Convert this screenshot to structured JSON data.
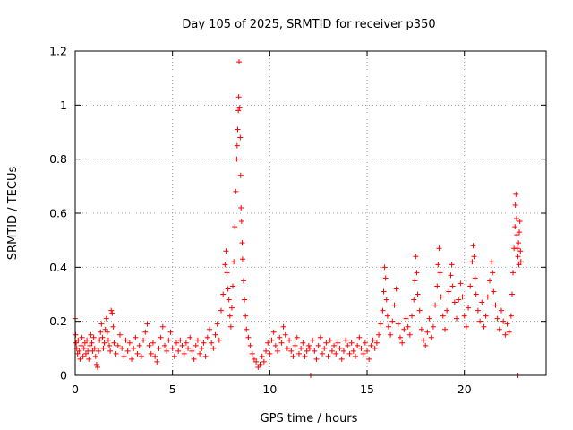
{
  "chart_data": {
    "type": "scatter",
    "title": "Day 105 of 2025, SRMTID for receiver p350",
    "xlabel": "GPS time / hours",
    "ylabel": "SRMTID / TECUs",
    "xlim": [
      0,
      24.2
    ],
    "ylim": [
      0,
      1.2
    ],
    "x_ticks": [
      0,
      5,
      10,
      15,
      20
    ],
    "x_tick_labels": [
      "0",
      "5",
      "10",
      "15",
      "20"
    ],
    "y_ticks": [
      0,
      0.2,
      0.4,
      0.6,
      0.8,
      1.0,
      1.2
    ],
    "y_tick_labels": [
      "0",
      "0.2",
      "0.4",
      "0.6",
      "0.8",
      "1",
      "1.2"
    ],
    "grid": true,
    "marker": "plus",
    "series_color": "#ff0000",
    "series": [
      {
        "name": "p350",
        "points": [
          [
            0.0,
            0.21
          ],
          [
            0.02,
            0.15
          ],
          [
            0.05,
            0.12
          ],
          [
            0.08,
            0.1
          ],
          [
            0.12,
            0.08
          ],
          [
            0.15,
            0.13
          ],
          [
            0.2,
            0.09
          ],
          [
            0.25,
            0.06
          ],
          [
            0.3,
            0.11
          ],
          [
            0.35,
            0.14
          ],
          [
            0.4,
            0.07
          ],
          [
            0.45,
            0.1
          ],
          [
            0.5,
            0.12
          ],
          [
            0.55,
            0.08
          ],
          [
            0.6,
            0.13
          ],
          [
            0.65,
            0.09
          ],
          [
            0.7,
            0.06
          ],
          [
            0.75,
            0.11
          ],
          [
            0.8,
            0.15
          ],
          [
            0.85,
            0.12
          ],
          [
            0.9,
            0.09
          ],
          [
            0.95,
            0.14
          ],
          [
            1.0,
            0.1
          ],
          [
            1.05,
            0.07
          ],
          [
            1.1,
            0.04
          ],
          [
            1.15,
            0.03
          ],
          [
            1.2,
            0.09
          ],
          [
            1.25,
            0.13
          ],
          [
            1.3,
            0.16
          ],
          [
            1.35,
            0.19
          ],
          [
            1.4,
            0.14
          ],
          [
            1.45,
            0.1
          ],
          [
            1.5,
            0.12
          ],
          [
            1.55,
            0.17
          ],
          [
            1.6,
            0.21
          ],
          [
            1.65,
            0.16
          ],
          [
            1.7,
            0.13
          ],
          [
            1.75,
            0.11
          ],
          [
            1.8,
            0.09
          ],
          [
            1.85,
            0.24
          ],
          [
            1.9,
            0.23
          ],
          [
            1.95,
            0.18
          ],
          [
            2.0,
            0.12
          ],
          [
            2.1,
            0.08
          ],
          [
            2.2,
            0.11
          ],
          [
            2.3,
            0.15
          ],
          [
            2.4,
            0.1
          ],
          [
            2.5,
            0.07
          ],
          [
            2.6,
            0.13
          ],
          [
            2.7,
            0.09
          ],
          [
            2.8,
            0.12
          ],
          [
            2.9,
            0.06
          ],
          [
            3.0,
            0.1
          ],
          [
            3.1,
            0.14
          ],
          [
            3.2,
            0.08
          ],
          [
            3.3,
            0.11
          ],
          [
            3.4,
            0.07
          ],
          [
            3.5,
            0.13
          ],
          [
            3.6,
            0.16
          ],
          [
            3.7,
            0.19
          ],
          [
            3.8,
            0.11
          ],
          [
            3.9,
            0.08
          ],
          [
            4.0,
            0.12
          ],
          [
            4.1,
            0.07
          ],
          [
            4.2,
            0.05
          ],
          [
            4.3,
            0.1
          ],
          [
            4.4,
            0.14
          ],
          [
            4.5,
            0.18
          ],
          [
            4.6,
            0.11
          ],
          [
            4.7,
            0.09
          ],
          [
            4.8,
            0.13
          ],
          [
            4.9,
            0.16
          ],
          [
            5.0,
            0.1
          ],
          [
            5.1,
            0.07
          ],
          [
            5.2,
            0.12
          ],
          [
            5.3,
            0.09
          ],
          [
            5.4,
            0.13
          ],
          [
            5.5,
            0.11
          ],
          [
            5.6,
            0.08
          ],
          [
            5.7,
            0.12
          ],
          [
            5.8,
            0.1
          ],
          [
            5.9,
            0.14
          ],
          [
            6.0,
            0.09
          ],
          [
            6.1,
            0.06
          ],
          [
            6.2,
            0.11
          ],
          [
            6.3,
            0.13
          ],
          [
            6.4,
            0.08
          ],
          [
            6.5,
            0.1
          ],
          [
            6.6,
            0.12
          ],
          [
            6.7,
            0.07
          ],
          [
            6.8,
            0.14
          ],
          [
            6.9,
            0.17
          ],
          [
            7.0,
            0.12
          ],
          [
            7.1,
            0.1
          ],
          [
            7.2,
            0.15
          ],
          [
            7.3,
            0.19
          ],
          [
            7.4,
            0.13
          ],
          [
            7.5,
            0.24
          ],
          [
            7.6,
            0.3
          ],
          [
            7.7,
            0.41
          ],
          [
            7.75,
            0.46
          ],
          [
            7.8,
            0.38
          ],
          [
            7.85,
            0.32
          ],
          [
            7.9,
            0.28
          ],
          [
            7.95,
            0.22
          ],
          [
            8.0,
            0.18
          ],
          [
            8.05,
            0.25
          ],
          [
            8.1,
            0.33
          ],
          [
            8.15,
            0.42
          ],
          [
            8.2,
            0.55
          ],
          [
            8.25,
            0.68
          ],
          [
            8.3,
            0.8
          ],
          [
            8.32,
            0.85
          ],
          [
            8.35,
            0.91
          ],
          [
            8.38,
            0.98
          ],
          [
            8.4,
            1.03
          ],
          [
            8.42,
            1.16
          ],
          [
            8.45,
            0.99
          ],
          [
            8.48,
            0.88
          ],
          [
            8.5,
            0.74
          ],
          [
            8.52,
            0.62
          ],
          [
            8.55,
            0.57
          ],
          [
            8.58,
            0.49
          ],
          [
            8.6,
            0.43
          ],
          [
            8.65,
            0.35
          ],
          [
            8.7,
            0.28
          ],
          [
            8.75,
            0.22
          ],
          [
            8.8,
            0.17
          ],
          [
            8.9,
            0.14
          ],
          [
            9.0,
            0.11
          ],
          [
            9.1,
            0.08
          ],
          [
            9.2,
            0.06
          ],
          [
            9.3,
            0.05
          ],
          [
            9.4,
            0.03
          ],
          [
            9.5,
            0.04
          ],
          [
            9.6,
            0.07
          ],
          [
            9.7,
            0.05
          ],
          [
            9.8,
            0.09
          ],
          [
            9.9,
            0.12
          ],
          [
            10.0,
            0.08
          ],
          [
            10.1,
            0.13
          ],
          [
            10.2,
            0.16
          ],
          [
            10.3,
            0.11
          ],
          [
            10.4,
            0.09
          ],
          [
            10.5,
            0.14
          ],
          [
            10.6,
            0.12
          ],
          [
            10.7,
            0.18
          ],
          [
            10.8,
            0.15
          ],
          [
            10.9,
            0.1
          ],
          [
            11.0,
            0.13
          ],
          [
            11.1,
            0.09
          ],
          [
            11.2,
            0.07
          ],
          [
            11.3,
            0.11
          ],
          [
            11.4,
            0.14
          ],
          [
            11.5,
            0.08
          ],
          [
            11.6,
            0.1
          ],
          [
            11.7,
            0.12
          ],
          [
            11.8,
            0.07
          ],
          [
            11.9,
            0.09
          ],
          [
            12.0,
            0.11
          ],
          [
            12.05,
            0.1
          ],
          [
            12.1,
            0.0
          ],
          [
            12.2,
            0.13
          ],
          [
            12.3,
            0.09
          ],
          [
            12.4,
            0.06
          ],
          [
            12.5,
            0.11
          ],
          [
            12.6,
            0.14
          ],
          [
            12.7,
            0.08
          ],
          [
            12.8,
            0.1
          ],
          [
            12.9,
            0.12
          ],
          [
            13.0,
            0.07
          ],
          [
            13.1,
            0.13
          ],
          [
            13.2,
            0.09
          ],
          [
            13.3,
            0.11
          ],
          [
            13.4,
            0.08
          ],
          [
            13.5,
            0.12
          ],
          [
            13.6,
            0.1
          ],
          [
            13.7,
            0.06
          ],
          [
            13.8,
            0.09
          ],
          [
            13.9,
            0.13
          ],
          [
            14.0,
            0.11
          ],
          [
            14.1,
            0.08
          ],
          [
            14.2,
            0.12
          ],
          [
            14.3,
            0.09
          ],
          [
            14.4,
            0.07
          ],
          [
            14.5,
            0.11
          ],
          [
            14.6,
            0.14
          ],
          [
            14.7,
            0.1
          ],
          [
            14.8,
            0.08
          ],
          [
            14.9,
            0.12
          ],
          [
            15.0,
            0.09
          ],
          [
            15.1,
            0.06
          ],
          [
            15.2,
            0.11
          ],
          [
            15.3,
            0.13
          ],
          [
            15.4,
            0.1
          ],
          [
            15.5,
            0.12
          ],
          [
            15.6,
            0.15
          ],
          [
            15.7,
            0.19
          ],
          [
            15.8,
            0.24
          ],
          [
            15.85,
            0.31
          ],
          [
            15.9,
            0.4
          ],
          [
            15.95,
            0.36
          ],
          [
            16.0,
            0.28
          ],
          [
            16.05,
            0.22
          ],
          [
            16.1,
            0.18
          ],
          [
            16.2,
            0.15
          ],
          [
            16.3,
            0.2
          ],
          [
            16.4,
            0.26
          ],
          [
            16.5,
            0.32
          ],
          [
            16.6,
            0.19
          ],
          [
            16.7,
            0.14
          ],
          [
            16.8,
            0.12
          ],
          [
            16.9,
            0.17
          ],
          [
            17.0,
            0.21
          ],
          [
            17.1,
            0.18
          ],
          [
            17.2,
            0.15
          ],
          [
            17.3,
            0.22
          ],
          [
            17.4,
            0.28
          ],
          [
            17.45,
            0.35
          ],
          [
            17.5,
            0.44
          ],
          [
            17.55,
            0.38
          ],
          [
            17.6,
            0.3
          ],
          [
            17.7,
            0.24
          ],
          [
            17.8,
            0.17
          ],
          [
            17.9,
            0.13
          ],
          [
            18.0,
            0.11
          ],
          [
            18.1,
            0.16
          ],
          [
            18.2,
            0.21
          ],
          [
            18.3,
            0.14
          ],
          [
            18.4,
            0.18
          ],
          [
            18.5,
            0.26
          ],
          [
            18.6,
            0.33
          ],
          [
            18.65,
            0.41
          ],
          [
            18.7,
            0.47
          ],
          [
            18.75,
            0.38
          ],
          [
            18.8,
            0.29
          ],
          [
            18.9,
            0.22
          ],
          [
            19.0,
            0.17
          ],
          [
            19.1,
            0.24
          ],
          [
            19.2,
            0.31
          ],
          [
            19.3,
            0.37
          ],
          [
            19.35,
            0.41
          ],
          [
            19.4,
            0.33
          ],
          [
            19.5,
            0.27
          ],
          [
            19.6,
            0.21
          ],
          [
            19.7,
            0.28
          ],
          [
            19.8,
            0.34
          ],
          [
            19.9,
            0.29
          ],
          [
            20.0,
            0.22
          ],
          [
            20.1,
            0.18
          ],
          [
            20.2,
            0.25
          ],
          [
            20.3,
            0.33
          ],
          [
            20.4,
            0.42
          ],
          [
            20.45,
            0.48
          ],
          [
            20.5,
            0.44
          ],
          [
            20.55,
            0.36
          ],
          [
            20.6,
            0.3
          ],
          [
            20.7,
            0.24
          ],
          [
            20.8,
            0.2
          ],
          [
            20.9,
            0.27
          ],
          [
            21.0,
            0.18
          ],
          [
            21.1,
            0.22
          ],
          [
            21.2,
            0.29
          ],
          [
            21.3,
            0.35
          ],
          [
            21.4,
            0.42
          ],
          [
            21.45,
            0.38
          ],
          [
            21.5,
            0.31
          ],
          [
            21.6,
            0.26
          ],
          [
            21.7,
            0.21
          ],
          [
            21.8,
            0.17
          ],
          [
            21.9,
            0.24
          ],
          [
            22.0,
            0.2
          ],
          [
            22.1,
            0.15
          ],
          [
            22.2,
            0.19
          ],
          [
            22.3,
            0.16
          ],
          [
            22.4,
            0.22
          ],
          [
            22.45,
            0.3
          ],
          [
            22.5,
            0.38
          ],
          [
            22.55,
            0.47
          ],
          [
            22.6,
            0.55
          ],
          [
            22.62,
            0.63
          ],
          [
            22.65,
            0.67
          ],
          [
            22.68,
            0.58
          ],
          [
            22.7,
            0.52
          ],
          [
            22.72,
            0.47
          ],
          [
            22.75,
            0.44
          ],
          [
            22.78,
            0.49
          ],
          [
            22.8,
            0.41
          ],
          [
            22.82,
            0.53
          ],
          [
            22.85,
            0.57
          ],
          [
            22.88,
            0.46
          ],
          [
            22.9,
            0.42
          ],
          [
            22.75,
            0.0
          ]
        ]
      }
    ]
  }
}
